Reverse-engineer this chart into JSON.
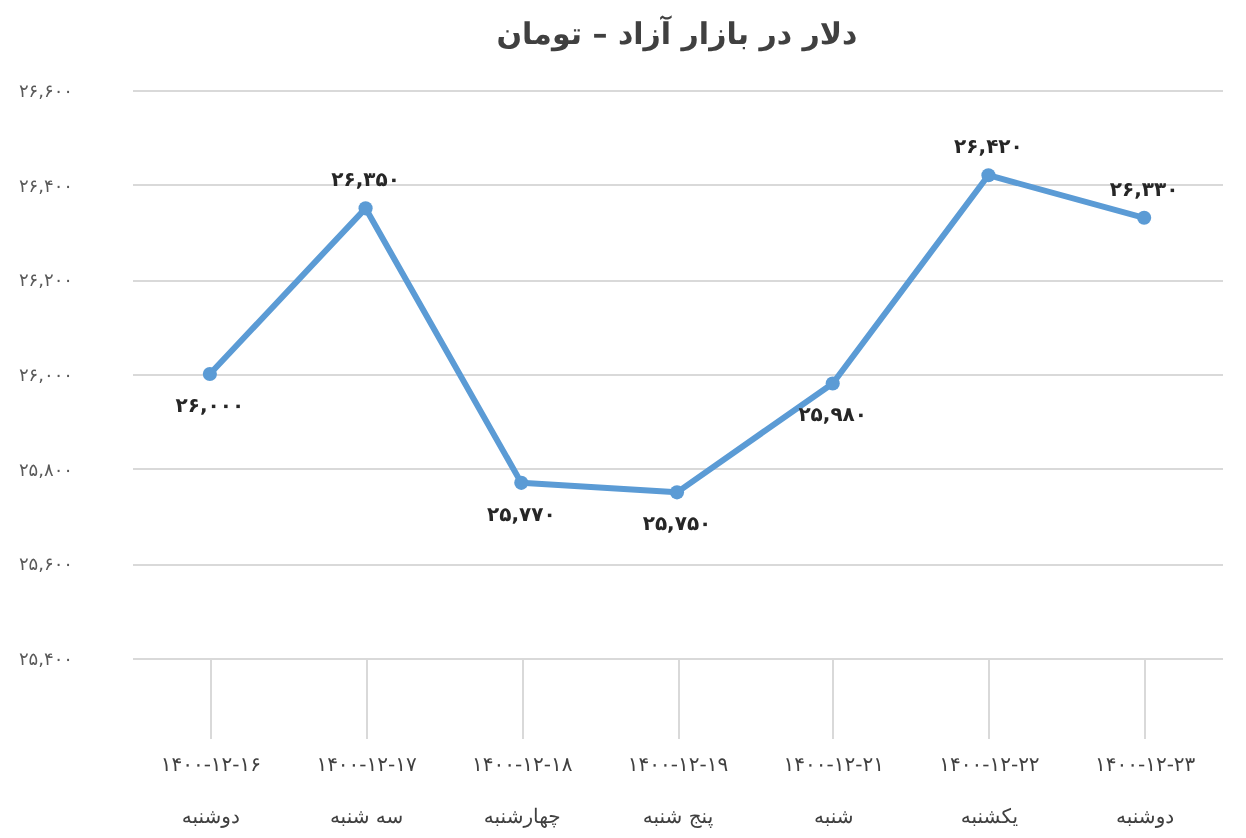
{
  "chart_data": {
    "type": "line",
    "title": "دلار در بازار آزاد – تومان",
    "categories": [
      "۱۴۰۰-۱۲-۱۶\nدوشنبه",
      "۱۴۰۰-۱۲-۱۷\nسه شنبه",
      "۱۴۰۰-۱۲-۱۸\nچهارشنبه",
      "۱۴۰۰-۱۲-۱۹\nپنج شنبه",
      "۱۴۰۰-۱۲-۲۱\nشنبه",
      "۱۴۰۰-۱۲-۲۲\nیکشنبه",
      "۱۴۰۰-۱۲-۲۳\nدوشنبه"
    ],
    "series": [
      {
        "color": "#5b9bd5",
        "values": [
          26000,
          26350,
          25770,
          25750,
          25980,
          26420,
          26330
        ],
        "value_labels": [
          "۲۶,۰۰۰",
          "۲۶,۳۵۰",
          "۲۵,۷۷۰",
          "۲۵,۷۵۰",
          "۲۵,۹۸۰",
          "۲۶,۴۲۰",
          "۲۶,۳۳۰"
        ]
      }
    ],
    "ylim": [
      25400,
      26600
    ],
    "yticks": [
      {
        "value": 25400,
        "label": "۲۵,۴۰۰"
      },
      {
        "value": 25600,
        "label": "۲۵,۶۰۰"
      },
      {
        "value": 25800,
        "label": "۲۵,۸۰۰"
      },
      {
        "value": 26000,
        "label": "۲۶,۰۰۰"
      },
      {
        "value": 26200,
        "label": "۲۶,۲۰۰"
      },
      {
        "value": 26400,
        "label": "۲۶,۴۰۰"
      },
      {
        "value": 26600,
        "label": "۲۶,۶۰۰"
      }
    ],
    "grid": "y",
    "marker": "circle",
    "line_style": "solid"
  }
}
